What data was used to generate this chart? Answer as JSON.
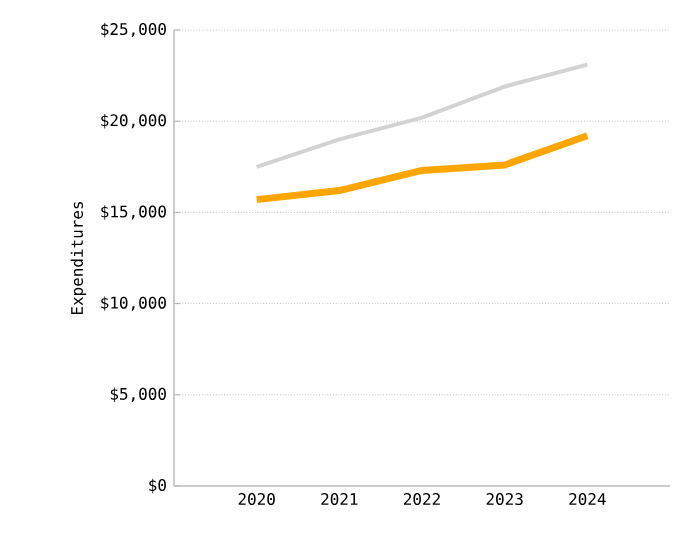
{
  "chart_data": {
    "type": "line",
    "ylabel": "Expenditures",
    "categories": [
      "2020",
      "2021",
      "2022",
      "2023",
      "2024"
    ],
    "series": [
      {
        "color": "#d3d3d3",
        "values": [
          17500,
          19000,
          20200,
          21900,
          23100
        ]
      },
      {
        "color": "#ffa500",
        "values": [
          15700,
          16200,
          17300,
          17600,
          19200
        ]
      }
    ],
    "ylim": [
      0,
      25000
    ],
    "yticks": [
      {
        "value": 0,
        "label": "$0"
      },
      {
        "value": 5000,
        "label": "$5,000"
      },
      {
        "value": 10000,
        "label": "$10,000"
      },
      {
        "value": 15000,
        "label": "$15,000"
      },
      {
        "value": 20000,
        "label": "$20,000"
      },
      {
        "value": 25000,
        "label": "$25,000"
      }
    ],
    "grid": "y",
    "marker": "none",
    "line_style": "solid"
  }
}
